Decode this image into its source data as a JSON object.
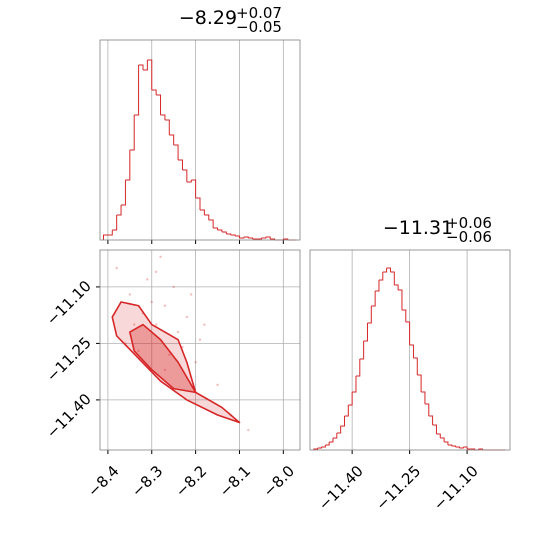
{
  "chart_data": [
    {
      "type": "histogram",
      "title": "−8.29",
      "title_upper": "+0.07",
      "title_lower": "−0.05",
      "color": "#d62728",
      "bins": [
        -8.41,
        -8.4,
        -8.39,
        -8.38,
        -8.37,
        -8.36,
        -8.35,
        -8.34,
        -8.33,
        -8.32,
        -8.31,
        -8.3,
        -8.29,
        -8.28,
        -8.27,
        -8.26,
        -8.25,
        -8.24,
        -8.23,
        -8.22,
        -8.21,
        -8.2,
        -8.19,
        -8.18,
        -8.17,
        -8.16,
        -8.15,
        -8.14,
        -8.13,
        -8.12,
        -8.11,
        -8.1,
        -8.09,
        -8.08,
        -8.07,
        -8.06,
        -8.05,
        -8.04,
        -8.03,
        -8.02,
        -8.01,
        -8.0,
        -7.99,
        -7.98,
        -7.97
      ],
      "counts": [
        5,
        5,
        10,
        25,
        35,
        60,
        90,
        125,
        175,
        170,
        180,
        150,
        145,
        125,
        120,
        105,
        95,
        80,
        70,
        58,
        60,
        42,
        30,
        25,
        20,
        12,
        10,
        8,
        6,
        5,
        4,
        2,
        3,
        2,
        1,
        1,
        2,
        3,
        1,
        0,
        0,
        1,
        0,
        0
      ],
      "xlim": [
        -8.418,
        -7.962
      ],
      "ylim": [
        0,
        200
      ],
      "xticks": [
        -8.4,
        -8.3,
        -8.2,
        -8.1,
        -8.0
      ],
      "grid": true
    },
    {
      "type": "scatter",
      "color": "#d62728",
      "x": [
        -8.38,
        -8.35,
        -8.31,
        -8.29,
        -8.27,
        -8.25,
        -8.22,
        -8.19,
        -8.33,
        -8.28,
        -8.24,
        -8.2,
        -8.36,
        -8.3,
        -8.26,
        -8.18,
        -8.15,
        -8.32,
        -8.23,
        -8.21,
        -8.12,
        -8.08,
        -8.27,
        -8.34,
        -8.29
      ],
      "y": [
        -11.05,
        -11.12,
        -11.08,
        -11.2,
        -11.15,
        -11.1,
        -11.18,
        -11.24,
        -11.27,
        -11.02,
        -11.22,
        -11.3,
        -11.25,
        -11.14,
        -11.28,
        -11.2,
        -11.36,
        -11.17,
        -11.26,
        -11.12,
        -11.44,
        -11.48,
        -11.32,
        -11.2,
        -11.06
      ],
      "contours": [
        {
          "x": [
            -8.39,
            -8.37,
            -8.33,
            -8.3,
            -8.27,
            -8.24,
            -8.22,
            -8.2,
            -8.14,
            -8.1,
            -8.15,
            -8.22,
            -8.28,
            -8.33,
            -8.38
          ],
          "y": [
            -11.18,
            -11.14,
            -11.15,
            -11.2,
            -11.22,
            -11.24,
            -11.3,
            -11.38,
            -11.42,
            -11.46,
            -11.44,
            -11.4,
            -11.35,
            -11.29,
            -11.23
          ]
        },
        {
          "x": [
            -8.35,
            -8.32,
            -8.28,
            -8.24,
            -8.2,
            -8.25,
            -8.3,
            -8.34
          ],
          "y": [
            -11.22,
            -11.2,
            -11.24,
            -11.3,
            -11.38,
            -11.37,
            -11.32,
            -11.27
          ]
        }
      ],
      "xlim": [
        -8.418,
        -7.962
      ],
      "ylim": [
        -11.533,
        -11.002
      ],
      "xticks": [
        {
          "value": -8.4,
          "label": "−8.4"
        },
        {
          "value": -8.3,
          "label": "−8.3"
        },
        {
          "value": -8.2,
          "label": "−8.2"
        },
        {
          "value": -8.1,
          "label": "−8.1"
        },
        {
          "value": -8.0,
          "label": "−8.0"
        }
      ],
      "yticks": [
        {
          "value": -11.1,
          "label": "−11.10"
        },
        {
          "value": -11.25,
          "label": "−11.25"
        },
        {
          "value": -11.4,
          "label": "−11.40"
        }
      ],
      "grid": true
    },
    {
      "type": "histogram",
      "title": "−11.31",
      "title_upper": "+0.06",
      "title_lower": "−0.06",
      "color": "#d62728",
      "bins": [
        -11.5,
        -11.49,
        -11.48,
        -11.47,
        -11.46,
        -11.45,
        -11.44,
        -11.43,
        -11.42,
        -11.41,
        -11.4,
        -11.39,
        -11.38,
        -11.37,
        -11.36,
        -11.35,
        -11.34,
        -11.33,
        -11.32,
        -11.31,
        -11.3,
        -11.29,
        -11.28,
        -11.27,
        -11.26,
        -11.25,
        -11.24,
        -11.23,
        -11.22,
        -11.21,
        -11.2,
        -11.19,
        -11.18,
        -11.17,
        -11.16,
        -11.15,
        -11.14,
        -11.13,
        -11.12,
        -11.11,
        -11.1,
        -11.09,
        -11.08,
        -11.07,
        -11.06,
        -11.05,
        -11.04,
        -11.03,
        -11.02,
        -11.01,
        -11.0
      ],
      "counts": [
        1,
        2,
        3,
        5,
        8,
        12,
        17,
        24,
        34,
        45,
        58,
        74,
        91,
        109,
        127,
        144,
        159,
        170,
        178,
        182,
        178,
        165,
        160,
        140,
        128,
        105,
        92,
        75,
        58,
        46,
        34,
        25,
        16,
        12,
        8,
        5,
        4,
        3,
        2,
        3,
        1,
        1,
        0,
        1,
        0,
        0,
        0,
        0,
        0,
        0
      ],
      "xlim": [
        -11.51,
        -10.988
      ],
      "ylim": [
        0,
        200
      ],
      "xticks": [
        {
          "value": -11.4,
          "label": "−11.40"
        },
        {
          "value": -11.25,
          "label": "−11.25"
        },
        {
          "value": -11.1,
          "label": "−11.10"
        }
      ],
      "grid": true
    }
  ]
}
